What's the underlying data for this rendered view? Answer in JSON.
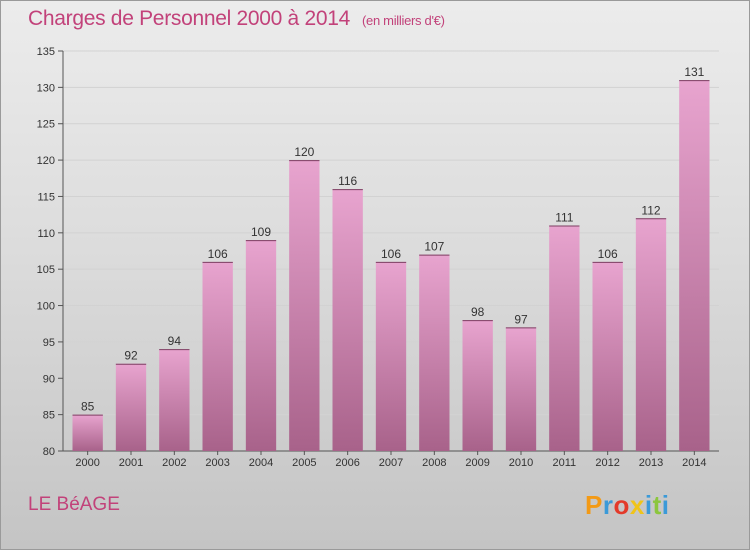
{
  "header": {
    "title": "Charges de Personnel 2000 à 2014",
    "unit": "(en milliers d'€)"
  },
  "footer": {
    "commune": "LE BéAGE",
    "logo_letters": [
      "P",
      "r",
      "o",
      "x",
      "i",
      "t",
      "i"
    ],
    "logo_colors": [
      "#f39a16",
      "#3b9ad8",
      "#e33a2a",
      "#f0c419",
      "#3b9ad8",
      "#8cc63e",
      "#3b9ad8"
    ]
  },
  "colors": {
    "bar_top": "#e8a4cf",
    "bar_bottom": "#a8628a",
    "title": "#c2427a"
  },
  "chart_data": {
    "type": "bar",
    "title": "Charges de Personnel 2000 à 2014",
    "subtitle": "(en milliers d'€)",
    "xlabel": "",
    "ylabel": "",
    "categories": [
      "2000",
      "2001",
      "2002",
      "2003",
      "2004",
      "2005",
      "2006",
      "2007",
      "2008",
      "2009",
      "2010",
      "2011",
      "2012",
      "2013",
      "2014"
    ],
    "values": [
      85,
      92,
      94,
      106,
      109,
      120,
      116,
      106,
      107,
      98,
      97,
      111,
      106,
      112,
      131
    ],
    "ylim": [
      80,
      135
    ],
    "yticks": [
      80,
      85,
      90,
      95,
      100,
      105,
      110,
      115,
      120,
      125,
      130,
      135
    ],
    "grid": true,
    "legend": "none"
  }
}
